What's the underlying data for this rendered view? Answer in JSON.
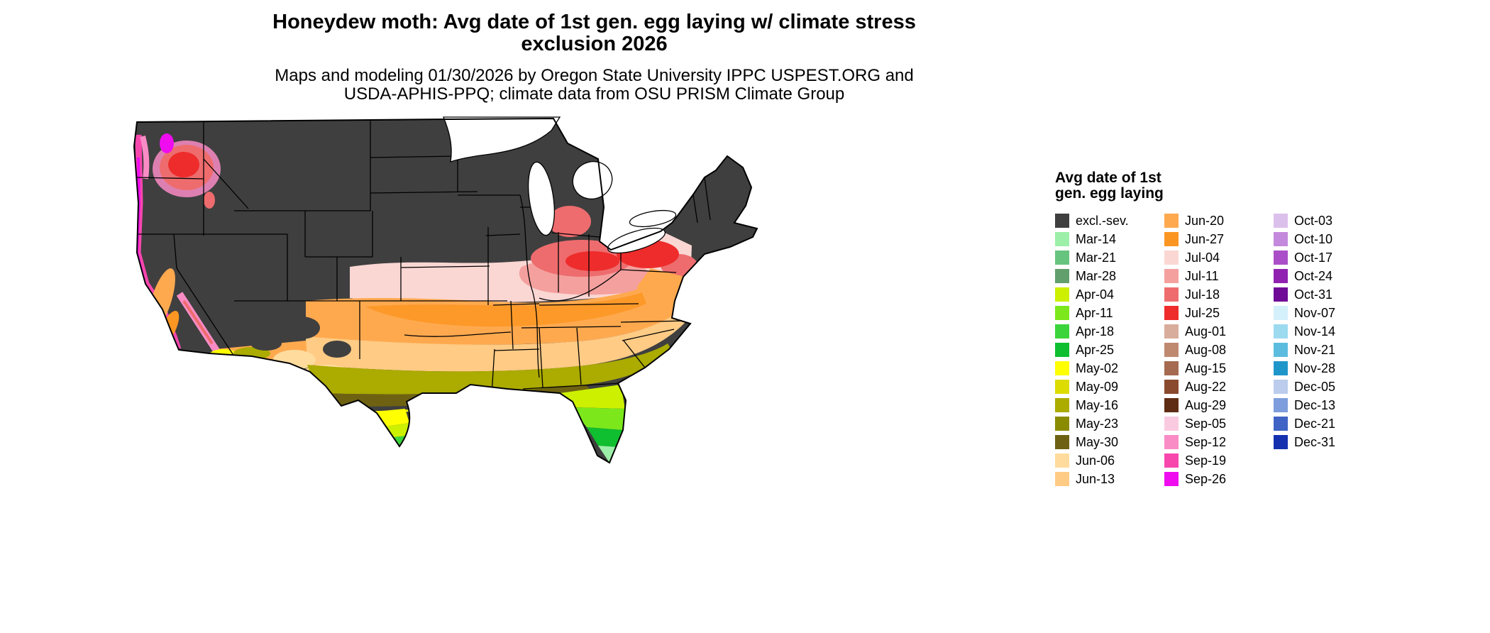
{
  "title": {
    "line1": "Honeydew moth: Avg date of 1st gen. egg laying w/ climate stress",
    "line2": "exclusion 2026"
  },
  "subtitle": {
    "line1": "Maps and modeling 01/30/2026 by Oregon State University IPPC USPEST.ORG and",
    "line2": "USDA-APHIS-PPQ; climate data from OSU PRISM Climate Group"
  },
  "legend": {
    "title_line1": "Avg date of 1st",
    "title_line2": "gen. egg laying",
    "columns": [
      [
        {
          "label": "excl.-sev.",
          "color": "#3F3F3F"
        },
        {
          "label": "Mar-14",
          "color": "#9CEFA8"
        },
        {
          "label": "Mar-21",
          "color": "#66C47E"
        },
        {
          "label": "Mar-28",
          "color": "#619F6C"
        },
        {
          "label": "Apr-04",
          "color": "#CCF000"
        },
        {
          "label": "Apr-11",
          "color": "#7CE81C"
        },
        {
          "label": "Apr-18",
          "color": "#3BD53B"
        },
        {
          "label": "Apr-25",
          "color": "#0FBF2F"
        },
        {
          "label": "May-02",
          "color": "#FFFF00"
        },
        {
          "label": "May-09",
          "color": "#DCDC00"
        },
        {
          "label": "May-16",
          "color": "#ABAB00"
        },
        {
          "label": "May-23",
          "color": "#8B8B00"
        },
        {
          "label": "May-30",
          "color": "#6E6212"
        },
        {
          "label": "Jun-06",
          "color": "#FFDC9E"
        },
        {
          "label": "Jun-13",
          "color": "#FFCB85"
        }
      ],
      [
        {
          "label": "Jun-20",
          "color": "#FFA94F"
        },
        {
          "label": "Jun-27",
          "color": "#FB9622"
        },
        {
          "label": "Jul-04",
          "color": "#FAD7D3"
        },
        {
          "label": "Jul-11",
          "color": "#F4A09E"
        },
        {
          "label": "Jul-18",
          "color": "#EE6C6E"
        },
        {
          "label": "Jul-25",
          "color": "#EE2C2C"
        },
        {
          "label": "Aug-01",
          "color": "#D8AD9B"
        },
        {
          "label": "Aug-08",
          "color": "#BF8970"
        },
        {
          "label": "Aug-15",
          "color": "#A56A50"
        },
        {
          "label": "Aug-22",
          "color": "#8A4A2E"
        },
        {
          "label": "Aug-29",
          "color": "#5F2D14"
        },
        {
          "label": "Sep-05",
          "color": "#FACBE0"
        },
        {
          "label": "Sep-12",
          "color": "#F98CC5"
        },
        {
          "label": "Sep-19",
          "color": "#F747AD"
        },
        {
          "label": "Sep-26",
          "color": "#EF0DEF"
        }
      ],
      [
        {
          "label": "Oct-03",
          "color": "#DCC0EC"
        },
        {
          "label": "Oct-10",
          "color": "#C489DC"
        },
        {
          "label": "Oct-17",
          "color": "#AA4FC8"
        },
        {
          "label": "Oct-24",
          "color": "#9122B1"
        },
        {
          "label": "Oct-31",
          "color": "#6F0B96"
        },
        {
          "label": "Nov-07",
          "color": "#D4F0FA"
        },
        {
          "label": "Nov-14",
          "color": "#9CDAF0"
        },
        {
          "label": "Nov-21",
          "color": "#5CBCDF"
        },
        {
          "label": "Nov-28",
          "color": "#1F96CA"
        },
        {
          "label": "Dec-05",
          "color": "#BBCCEC"
        },
        {
          "label": "Dec-13",
          "color": "#7E9DDC"
        },
        {
          "label": "Dec-21",
          "color": "#4064C5"
        },
        {
          "label": "Dec-31",
          "color": "#1531AF"
        }
      ]
    ]
  }
}
